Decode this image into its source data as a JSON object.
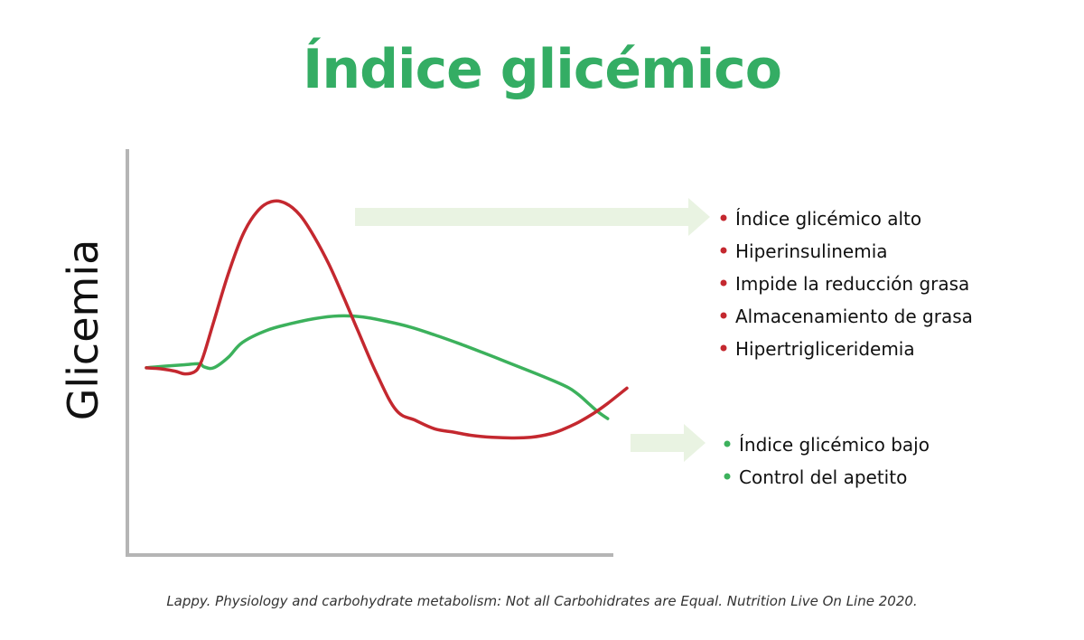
{
  "title": "Índice glicémico",
  "citation": "Lappy. Physiology and carbohydrate metabolism: Not all Carbohidrates are Equal. Nutrition Live On Line 2020.",
  "colors": {
    "title": "#34ad64",
    "high_gi": "#c4282f",
    "low_gi": "#3cb15c",
    "arrow": "#e9f3e2",
    "axis": "#b5b5b5"
  },
  "chart_data": {
    "type": "line",
    "title": "Índice glicémico",
    "xlabel": "",
    "ylabel": "Glicemia",
    "xlim": [
      0,
      100
    ],
    "ylim": [
      0,
      100
    ],
    "grid": false,
    "ticks": false,
    "series": [
      {
        "key": "high",
        "color": "#c4282f",
        "x": [
          0,
          3,
          6,
          8,
          10,
          11,
          12,
          14,
          17,
          20,
          23,
          26,
          29,
          32,
          35,
          38,
          41,
          44,
          48,
          52,
          56,
          60,
          64,
          68,
          72,
          76,
          80,
          84,
          87,
          90,
          93,
          96,
          100
        ],
        "y": [
          43.5,
          43.2,
          42.5,
          41.7,
          42.3,
          44,
          47.5,
          57,
          71,
          82.5,
          89.5,
          92.5,
          92,
          88.5,
          82,
          74,
          64.5,
          54.5,
          41.5,
          31,
          28,
          25.5,
          24.5,
          23.5,
          23,
          22.8,
          23,
          24,
          25.5,
          27.5,
          30,
          33,
          37.5
        ]
      },
      {
        "key": "low",
        "color": "#3cb15c",
        "x": [
          0,
          4,
          8,
          11,
          12,
          14,
          17,
          20,
          25,
          30,
          35,
          40,
          45,
          50,
          55,
          60,
          65,
          70,
          75,
          80,
          85,
          88,
          90,
          92,
          94,
          96
        ],
        "y": [
          43.5,
          44,
          44.4,
          44.7,
          43.8,
          43.5,
          46.5,
          51,
          54.5,
          56.5,
          58,
          58.8,
          58.5,
          57.2,
          55.5,
          53.2,
          50.7,
          48,
          45.2,
          42.4,
          39.5,
          37.5,
          35.5,
          33,
          30.5,
          28.5
        ]
      }
    ],
    "annotations": [
      {
        "series": "high",
        "items": [
          "Índice glicémico alto",
          "Hiperinsulinemia",
          "Impide la reducción grasa",
          "Almacenamiento de grasa",
          "Hipertrigliceridemia"
        ]
      },
      {
        "series": "low",
        "items": [
          "Índice glicémico bajo",
          "Control del apetito"
        ]
      }
    ]
  }
}
